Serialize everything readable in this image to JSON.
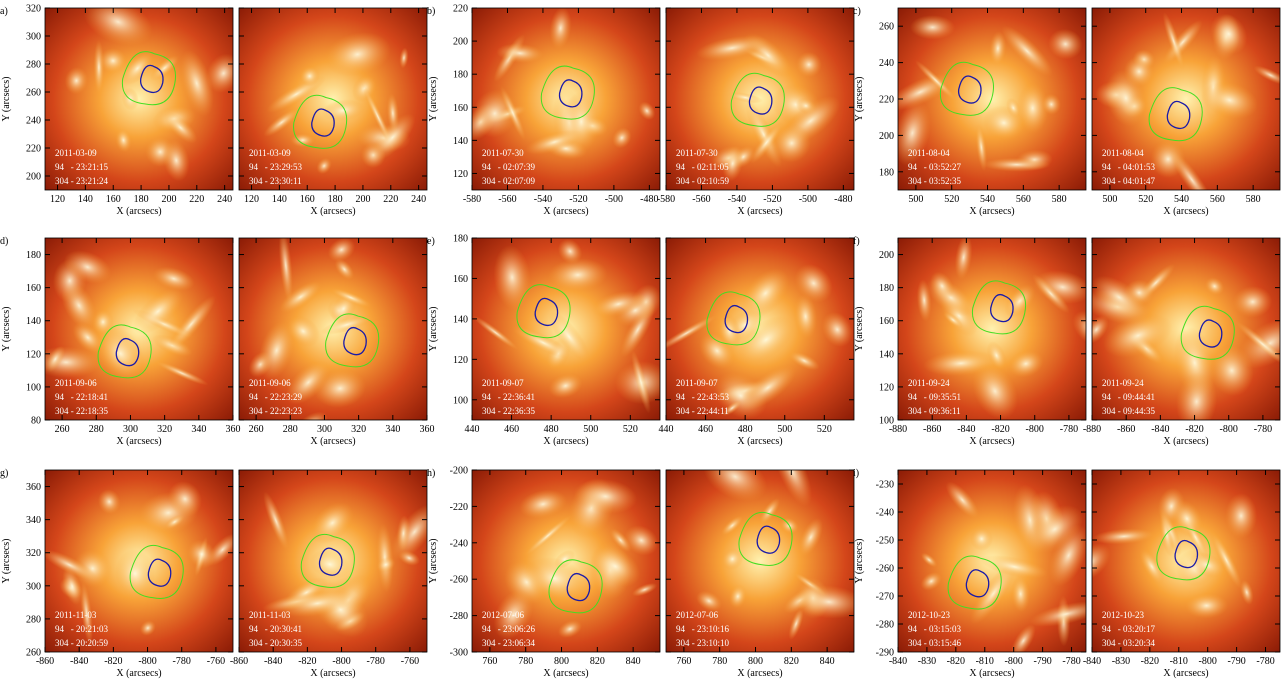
{
  "groups": [
    {
      "label": "a)",
      "ylabel": "Y (arcsecs)",
      "xlim": [
        111,
        246
      ],
      "ylim": [
        190,
        320
      ],
      "xticks": [
        120,
        140,
        160,
        180,
        200,
        220,
        240
      ],
      "yticks": [
        200,
        220,
        240,
        260,
        280,
        300,
        320
      ],
      "panels": [
        {
          "xlabel": "X (arcsecs)",
          "date": "2011-03-09",
          "t94": "94   - 23:21:15",
          "t304": "304 - 23:21:24"
        },
        {
          "xlabel": "X (arcsecs)",
          "date": "2011-03-09",
          "t94": "94   - 23:29:53",
          "t304": "304 - 23:30:11"
        }
      ]
    },
    {
      "label": "b)",
      "ylabel": "Y (arcsecs)",
      "xlim": [
        -580,
        -474
      ],
      "ylim": [
        110,
        220
      ],
      "xticks": [
        -580,
        -560,
        -540,
        -520,
        -500,
        -480
      ],
      "yticks": [
        120,
        140,
        160,
        180,
        200,
        220
      ],
      "panels": [
        {
          "xlabel": "X (arcsecs)",
          "date": "2011-07-30",
          "t94": "94   - 02:07:39",
          "t304": "304 - 02:07:09"
        },
        {
          "xlabel": "X (arcsecs)",
          "date": "2011-07-30",
          "t94": "94   - 02:11:05",
          "t304": "304 - 02:10:59"
        }
      ]
    },
    {
      "label": "c)",
      "ylabel": "Y (arcsecs)",
      "xlim": [
        490,
        595
      ],
      "ylim": [
        170,
        270
      ],
      "xticks": [
        500,
        520,
        540,
        560,
        580
      ],
      "yticks": [
        180,
        200,
        220,
        240,
        260
      ],
      "panels": [
        {
          "xlabel": "X (arcsecs)",
          "date": "2011-08-04",
          "t94": "94   - 03:52:27",
          "t304": "304 - 03:52:35"
        },
        {
          "xlabel": "X (arcsecs)",
          "date": "2011-08-04",
          "t94": "94   - 04:01:53",
          "t304": "304 - 04:01:47"
        }
      ]
    },
    {
      "label": "d)",
      "ylabel": "Y (arcsecs)",
      "xlim": [
        250,
        360
      ],
      "ylim": [
        80,
        190
      ],
      "xticks": [
        260,
        280,
        300,
        320,
        340,
        360
      ],
      "yticks": [
        80,
        100,
        120,
        140,
        160,
        180
      ],
      "panels": [
        {
          "xlabel": "X (arcsecs)",
          "date": "2011-09-06",
          "t94": "94   - 22:18:41",
          "t304": "304 - 22:18:35"
        },
        {
          "xlabel": "X (arcsecs)",
          "date": "2011-09-06",
          "t94": "94   - 22:23:29",
          "t304": "304 - 22:23:23"
        }
      ]
    },
    {
      "label": "e)",
      "ylabel": "Y (arcsecs)",
      "xlim": [
        440,
        535
      ],
      "ylim": [
        90,
        180
      ],
      "xticks": [
        440,
        460,
        480,
        500,
        520
      ],
      "yticks": [
        100,
        120,
        140,
        160,
        180
      ],
      "panels": [
        {
          "xlabel": "X (arcsecs)",
          "date": "2011-09-07",
          "t94": "94   - 22:36:41",
          "t304": "304 - 22:36:35"
        },
        {
          "xlabel": "X (arcsecs)",
          "date": "2011-09-07",
          "t94": "94   - 22:43:53",
          "t304": "304 - 22:44:11"
        }
      ]
    },
    {
      "label": "f)",
      "ylabel": "Y (arcsecs)",
      "xlim": [
        -880,
        -770
      ],
      "ylim": [
        100,
        210
      ],
      "xticks": [
        -880,
        -860,
        -840,
        -820,
        -800,
        -780
      ],
      "yticks": [
        100,
        120,
        140,
        160,
        180,
        200
      ],
      "panels": [
        {
          "xlabel": "X (arcsecs)",
          "date": "2011-09-24",
          "t94": "94   - 09:35:51",
          "t304": "304 - 09:36:11"
        },
        {
          "xlabel": "X (arcsecs)",
          "date": "2011-09-24",
          "t94": "94   - 09:44:41",
          "t304": "304 - 09:44:35"
        }
      ]
    },
    {
      "label": "g)",
      "ylabel": "Y (arcsecs)",
      "xlim": [
        -860,
        -750
      ],
      "ylim": [
        260,
        370
      ],
      "xticks": [
        -860,
        -840,
        -820,
        -800,
        -780,
        -760
      ],
      "yticks": [
        260,
        280,
        300,
        320,
        340,
        360
      ],
      "panels": [
        {
          "xlabel": "X (arcsecs)",
          "date": "2011-11-03",
          "t94": "94   - 20:21:03",
          "t304": "304 - 20:20:59"
        },
        {
          "xlabel": "X (arcsecs)",
          "date": "2011-11-03",
          "t94": "94   - 20:30:41",
          "t304": "304 - 20:30:35"
        }
      ]
    },
    {
      "label": "h)",
      "ylabel": "Y (arcsecs)",
      "xlim": [
        750,
        855
      ],
      "ylim": [
        -300,
        -200
      ],
      "xticks": [
        760,
        780,
        800,
        820,
        840
      ],
      "yticks": [
        -300,
        -280,
        -260,
        -240,
        -220,
        -200
      ],
      "panels": [
        {
          "xlabel": "X (arcsecs)",
          "date": "2012-07-06",
          "t94": "94   - 23:06:26",
          "t304": "304 - 23:06:34"
        },
        {
          "xlabel": "X (arcsecs)",
          "date": "2012-07-06",
          "t94": "94   - 23:10:16",
          "t304": "304 - 23:10:10"
        }
      ]
    },
    {
      "label": "i)",
      "ylabel": "Y (arcsecs)",
      "xlim": [
        -840,
        -775
      ],
      "ylim": [
        -290,
        -225
      ],
      "xticks": [
        -840,
        -830,
        -820,
        -810,
        -800,
        -790,
        -780
      ],
      "yticks": [
        -290,
        -280,
        -270,
        -260,
        -250,
        -240,
        -230
      ],
      "panels": [
        {
          "xlabel": "X (arcsecs)",
          "date": "2012-10-23",
          "t94": "94   - 03:15:03",
          "t304": "304 - 03:15:46"
        },
        {
          "xlabel": "X (arcsecs)",
          "date": "2012-10-23",
          "t94": "94   - 03:20:17",
          "t304": "304 - 03:20:34"
        }
      ]
    }
  ]
}
